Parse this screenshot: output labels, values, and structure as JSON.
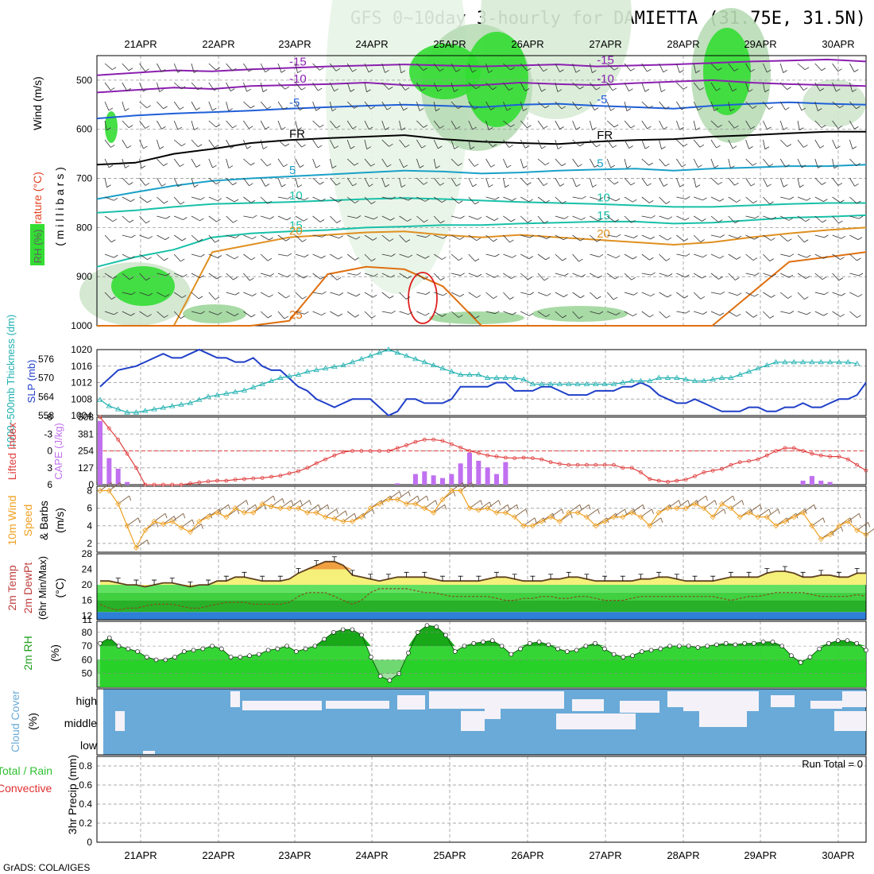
{
  "title": "GFS 0~10day 3-hourly for DAMIETTA (31.75E, 31.5N)",
  "footer": "GrADS: COLA/IGES",
  "dates": [
    "21APR",
    "22APR",
    "23APR",
    "24APR",
    "25APR",
    "26APR",
    "27APR",
    "28APR",
    "29APR",
    "30APR"
  ],
  "colors": {
    "rh_green": "#33dd33",
    "temp_purple": "#8b1fb0",
    "temp_blue": "#1f5fd8",
    "temp_cyan": "#1aa0c8",
    "temp_teal": "#18c0a8",
    "temp_orange": "#e09020",
    "temp_red": "#e02020",
    "slp_blue": "#1f3fc8",
    "thickness_cyan": "#20b0b0",
    "lifted_red": "#e04040",
    "cape_purple": "#c070f0",
    "wind_orange": "#f0a020",
    "wind_barb": "#806040",
    "temp_fill_yellow": "#f4f07a",
    "temp_fill_orange": "#f0a040",
    "dew_green": "#40e040",
    "rh_fill_green": "#30e030",
    "cloud_blue": "#6aaad8",
    "cloud_white": "#f4f2f8"
  },
  "labels": {
    "panel1": {
      "wind": "Wind (m/s)",
      "temperature": "Temperature (°C)",
      "rh": "RH (%)",
      "unit": "( m i l l i b a r s )"
    },
    "panel2": {
      "thickness": "1000~500mb Thickness (dm)",
      "slp": "SLP (mb)"
    },
    "panel3": {
      "lifted": "Lifted Index",
      "cape": "CAPE (J/kg)"
    },
    "panel4": {
      "wind": "10m Wind Speed & Barbs",
      "unit": "(m/s)"
    },
    "panel5": {
      "temp": "2m Temp",
      "dew": "2m DewPt",
      "minmax": "(6hr Min/Max)",
      "unit": "(°C)"
    },
    "panel6": {
      "rh": "2m RH",
      "unit": "(%)"
    },
    "panel7": {
      "cloud": "Cloud Cover",
      "unit": "(%)"
    },
    "panel8": {
      "precip": "Total / Rain",
      "convective": "Convective",
      "unit": "3hr Precip (mm)",
      "run_total": "Run Total = 0"
    }
  },
  "chart_data": [
    {
      "type": "heatmap",
      "panel": "pressure-cross-section",
      "y_axis": "pressure (millibars)",
      "ylim": [
        450,
        1000
      ],
      "yticks": [
        500,
        600,
        700,
        800,
        900,
        1000
      ],
      "contour_labels": [
        {
          "label": "-15",
          "color": "purple"
        },
        {
          "label": "-10",
          "color": "purple"
        },
        {
          "label": "-5",
          "color": "blue"
        },
        {
          "label": "FR",
          "color": "black"
        },
        {
          "label": "5",
          "color": "cyan"
        },
        {
          "label": "10",
          "color": "teal"
        },
        {
          "label": "15",
          "color": "teal"
        },
        {
          "label": "20",
          "color": "orange"
        },
        {
          "label": "25",
          "color": "orange"
        }
      ],
      "isotherms": [
        {
          "label": "-15",
          "p": [
            490,
            485,
            480,
            482,
            478,
            475,
            472,
            470,
            468,
            470,
            472,
            470,
            468,
            472,
            470,
            468,
            465,
            462,
            460,
            458,
            462
          ]
        },
        {
          "label": "-10",
          "p": [
            525,
            520,
            515,
            518,
            512,
            510,
            508,
            505,
            510,
            512,
            510,
            505,
            508,
            510,
            506,
            503,
            500,
            505,
            508,
            510,
            512
          ]
        },
        {
          "label": "-5",
          "p": [
            578,
            572,
            568,
            565,
            562,
            558,
            555,
            552,
            550,
            552,
            555,
            550,
            548,
            552,
            555,
            558,
            552,
            548,
            545,
            548,
            550
          ]
        },
        {
          "label": "FR",
          "p": [
            672,
            668,
            650,
            640,
            628,
            622,
            618,
            615,
            612,
            620,
            625,
            628,
            630,
            625,
            622,
            620,
            615,
            612,
            608,
            605,
            605
          ]
        },
        {
          "label": "5",
          "p": [
            742,
            728,
            715,
            705,
            700,
            696,
            692,
            688,
            684,
            686,
            690,
            688,
            684,
            682,
            680,
            684,
            680,
            678,
            675,
            675,
            672
          ]
        },
        {
          "label": "10",
          "p": [
            770,
            765,
            758,
            752,
            750,
            748,
            745,
            742,
            740,
            742,
            745,
            748,
            750,
            752,
            755,
            758,
            758,
            755,
            752,
            750,
            750
          ]
        },
        {
          "label": "15",
          "p": [
            880,
            860,
            845,
            820,
            812,
            808,
            805,
            800,
            798,
            795,
            795,
            792,
            790,
            788,
            788,
            792,
            790,
            785,
            780,
            778,
            775
          ]
        },
        {
          "label": "20",
          "p": [
            1000,
            1000,
            1000,
            850,
            835,
            820,
            815,
            810,
            808,
            815,
            820,
            815,
            820,
            825,
            830,
            835,
            830,
            820,
            812,
            805,
            800
          ]
        },
        {
          "label": "25",
          "p": [
            1000,
            1000,
            1000,
            1000,
            1000,
            990,
            895,
            880,
            885,
            920,
            1000,
            1000,
            1000,
            1000,
            1000,
            1000,
            1000,
            935,
            870,
            860,
            850
          ]
        }
      ]
    },
    {
      "type": "line",
      "panel": "slp-thickness",
      "series": [
        {
          "name": "SLP (mb)",
          "ylim": [
            1004,
            1020
          ],
          "yticks": [
            1004,
            1008,
            1012,
            1016,
            1020
          ],
          "values": [
            1011,
            1013,
            1015,
            1015.5,
            1016,
            1017,
            1018,
            1019,
            1018,
            1018,
            1019,
            1020,
            1019,
            1018,
            1018,
            1017,
            1017,
            1018,
            1016,
            1015,
            1015,
            1013,
            1011,
            1010,
            1008,
            1007,
            1006,
            1007,
            1008,
            1008,
            1008,
            1006,
            1004,
            1005,
            1008,
            1008,
            1007,
            1007,
            1007,
            1008,
            1011,
            1011,
            1011,
            1011,
            1012,
            1012,
            1010,
            1010,
            1010,
            1011,
            1011,
            1010,
            1009,
            1009,
            1009,
            1010,
            1010,
            1010,
            1011,
            1011,
            1012,
            1011,
            1009,
            1008,
            1007,
            1007,
            1008,
            1007,
            1006,
            1005,
            1005,
            1005,
            1006,
            1006,
            1005,
            1005,
            1006,
            1006,
            1007,
            1006,
            1006,
            1007,
            1008,
            1008,
            1009,
            1012
          ]
        },
        {
          "name": "1000~500mb Thickness (dm)",
          "ylim": [
            558,
            579
          ],
          "yticks": [
            558,
            564,
            570,
            576
          ],
          "values": [
            563,
            561,
            560,
            559,
            559,
            559.5,
            560,
            560.5,
            561,
            561.5,
            562,
            563,
            564,
            564.5,
            565,
            565.5,
            566,
            567,
            568,
            569,
            570,
            570.5,
            571,
            572,
            572.5,
            573,
            573.5,
            574,
            575,
            576,
            577,
            578,
            579,
            578,
            577,
            576,
            575,
            574,
            573,
            572,
            571,
            571,
            571,
            570,
            570,
            570,
            570,
            569.5,
            568,
            568,
            568,
            568,
            568,
            568,
            568,
            568,
            568,
            568,
            568.5,
            569,
            569,
            569,
            570,
            570,
            570,
            569.5,
            569,
            569,
            569.5,
            570,
            570,
            571,
            572,
            573,
            574,
            575,
            575,
            575,
            575,
            575,
            575,
            575,
            575,
            575,
            574.5
          ]
        }
      ]
    },
    {
      "type": "bar",
      "panel": "lifted-index-cape",
      "series": [
        {
          "name": "CAPE (J/kg)",
          "ylim": [
            0,
            508
          ],
          "yticks": [
            0,
            127,
            254,
            381,
            508
          ],
          "values": [
            480,
            200,
            120,
            20,
            0,
            0,
            0,
            0,
            0,
            0,
            0,
            0,
            0,
            0,
            0,
            0,
            0,
            0,
            0,
            0,
            0,
            0,
            0,
            0,
            0,
            0,
            0,
            0,
            0,
            0,
            0,
            0,
            0,
            10,
            0,
            80,
            100,
            70,
            50,
            80,
            160,
            240,
            180,
            130,
            80,
            170,
            0,
            0,
            0,
            0,
            0,
            0,
            0,
            0,
            0,
            0,
            0,
            0,
            0,
            0,
            0,
            0,
            0,
            0,
            0,
            0,
            0,
            0,
            0,
            0,
            0,
            0,
            0,
            0,
            0,
            0,
            0,
            0,
            30,
            65,
            30,
            20,
            0,
            0,
            0,
            0
          ]
        },
        {
          "name": "Lifted Index",
          "type": "line",
          "ylim": [
            6,
            -6
          ],
          "yticks": [
            6,
            3,
            0,
            -3,
            -6
          ],
          "values": [
            -6,
            -4,
            -2,
            0.5,
            3,
            6,
            6,
            6,
            6,
            6,
            5.8,
            5.6,
            5.4,
            5.3,
            5.3,
            5.1,
            5,
            4.9,
            4.8,
            4.6,
            4.4,
            4,
            3.6,
            3,
            2.2,
            1.5,
            0.8,
            0.2,
            0,
            0,
            0,
            0,
            0,
            -0.5,
            -1,
            -1.6,
            -2,
            -2,
            -1.8,
            -1.2,
            -0.6,
            0,
            0.4,
            0.8,
            1,
            1.2,
            1.3,
            1.2,
            1.3,
            1.5,
            2,
            2.3,
            2.5,
            2.5,
            2.5,
            2.5,
            2.5,
            2.5,
            3,
            3,
            3.8,
            5,
            5.3,
            5.5,
            5.3,
            5.1,
            4.5,
            3.8,
            3.5,
            3.2,
            2.5,
            2,
            1.8,
            1.5,
            0.8,
            0,
            -0.5,
            -0.5,
            0,
            0.5,
            0.8,
            1,
            1,
            1.5,
            2.5,
            3.5
          ]
        }
      ]
    },
    {
      "type": "line",
      "panel": "10m-wind",
      "name": "10m Wind Speed (m/s)",
      "ylim": [
        1,
        8.5
      ],
      "yticks": [
        2,
        4,
        6,
        8
      ],
      "values": [
        8,
        8,
        6.5,
        4,
        1.5,
        3.5,
        4.5,
        4.2,
        4.5,
        3.8,
        3.3,
        4.5,
        5,
        5.5,
        5,
        6,
        5.5,
        5.5,
        6.5,
        6.2,
        6,
        6,
        6,
        5.5,
        5.5,
        5,
        4.8,
        4.5,
        4.5,
        5,
        6,
        6.5,
        7,
        7,
        6.5,
        6.5,
        6,
        5.5,
        7,
        8,
        8,
        6,
        5.8,
        6,
        5.5,
        5.5,
        5,
        4,
        4,
        4.5,
        5,
        4.5,
        5.5,
        5.5,
        5,
        4,
        4.5,
        5,
        5,
        5.5,
        5,
        4,
        5.5,
        6,
        6,
        6,
        6.5,
        6,
        5,
        6.5,
        6,
        5,
        5.5,
        5,
        5,
        4,
        4.5,
        5,
        5.5,
        4,
        2.5,
        3,
        4,
        4.5,
        3.5,
        3
      ]
    },
    {
      "type": "area",
      "panel": "2m-temp-dewpt",
      "ylim": [
        11,
        28
      ],
      "yticks": [
        11,
        12,
        16,
        20,
        24,
        28
      ],
      "series": [
        {
          "name": "2m Temp",
          "values": [
            21,
            21,
            20.5,
            20,
            20,
            19.5,
            20,
            20.5,
            20.5,
            20,
            19.5,
            20,
            20,
            21,
            21,
            22,
            22,
            21.5,
            21,
            21,
            21,
            21.5,
            23,
            24,
            25,
            26,
            26,
            25,
            22.5,
            22,
            21.5,
            21,
            21.5,
            22,
            22,
            22,
            22,
            21.5,
            21,
            21,
            21,
            21,
            21,
            21.5,
            22,
            22,
            21.5,
            21,
            21,
            21,
            21.5,
            21.5,
            22,
            22,
            21.5,
            21,
            21,
            21,
            21,
            21,
            21.5,
            21.5,
            22,
            22,
            21.5,
            21,
            21,
            21,
            21,
            21.5,
            22,
            22,
            22,
            22,
            23,
            23.5,
            23.5,
            23,
            22,
            22,
            22.5,
            22.5,
            22,
            22,
            23,
            23
          ]
        },
        {
          "name": "2m DewPt",
          "values": [
            15,
            14,
            13.5,
            14,
            14,
            14.5,
            15,
            15,
            15,
            14.5,
            14,
            14,
            14.5,
            15,
            15.5,
            15.5,
            15.5,
            15,
            15,
            15,
            15,
            15.5,
            17,
            18,
            18,
            18,
            17,
            16,
            15,
            16,
            18,
            19,
            19,
            19,
            19,
            18.5,
            18,
            18,
            17.5,
            17,
            17,
            17,
            17,
            17,
            16.5,
            16,
            16,
            16.5,
            16.5,
            17,
            17,
            16.5,
            16.5,
            17,
            17,
            16.5,
            16,
            16,
            16,
            16.5,
            17,
            17,
            17,
            17,
            17,
            17,
            17,
            17,
            17,
            16.5,
            16,
            16.5,
            17,
            17,
            17.5,
            18,
            18,
            18,
            18,
            17.5,
            17,
            17,
            17,
            17,
            17.5,
            17
          ]
        }
      ]
    },
    {
      "type": "area",
      "panel": "2m-rh",
      "name": "2m RH (%)",
      "ylim": [
        40,
        88
      ],
      "yticks": [
        50,
        60,
        70,
        80
      ],
      "values": [
        72,
        76,
        70,
        68,
        66,
        62,
        60,
        60,
        62,
        66,
        67,
        68,
        70,
        68,
        62,
        62,
        63,
        64,
        67,
        68,
        70,
        66,
        68,
        70,
        75,
        80,
        82,
        82,
        78,
        62,
        48,
        45,
        50,
        65,
        80,
        85,
        84,
        78,
        66,
        70,
        72,
        73,
        74,
        70,
        64,
        68,
        72,
        73,
        71,
        68,
        66,
        67,
        70,
        72,
        68,
        64,
        62,
        63,
        66,
        67,
        68,
        70,
        70,
        70,
        69,
        70,
        71,
        72,
        71,
        72,
        72,
        73,
        73,
        70,
        63,
        58,
        62,
        68,
        72,
        74,
        74,
        72,
        67
      ]
    },
    {
      "type": "heatmap",
      "panel": "cloud-cover",
      "rows": [
        "high",
        "middle",
        "low"
      ],
      "categories": [
        "high",
        "middle",
        "low"
      ]
    },
    {
      "type": "line",
      "panel": "3hr-precip",
      "ylim": [
        0,
        0.9
      ],
      "yticks": [
        0,
        0.2,
        0.4,
        0.6,
        0.8
      ],
      "values": [],
      "run_total": 0
    }
  ]
}
